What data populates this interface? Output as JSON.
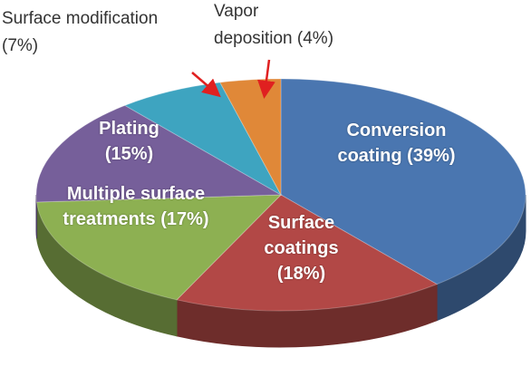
{
  "chart_data": {
    "type": "pie3d",
    "categories": [
      "Conversion coating",
      "Surface coatings",
      "Multiple surface treatments",
      "Plating",
      "Surface modification",
      "Vapor deposition"
    ],
    "values": [
      39,
      18,
      17,
      15,
      7,
      4
    ],
    "value_labels": [
      "(39%)",
      "(18%)",
      "(17%)",
      "(15%)",
      "(7%)",
      "(4%)"
    ],
    "colors": [
      "#4a76b0",
      "#b24846",
      "#8db052",
      "#765f9a",
      "#3ea4c0",
      "#e08838"
    ]
  }
}
